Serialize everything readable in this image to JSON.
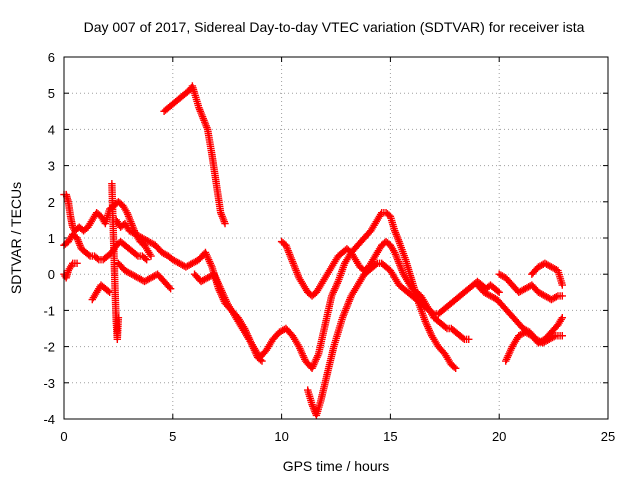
{
  "chart_data": {
    "type": "scatter",
    "title": "Day 007 of 2017, Sidereal Day-to-day VTEC variation (SDTVAR) for receiver ista",
    "xlabel": "GPS time / hours",
    "ylabel": "SDTVAR / TECUs",
    "xlim": [
      0,
      25
    ],
    "ylim": [
      -4,
      6
    ],
    "xticks": [
      0,
      5,
      10,
      15,
      20,
      25
    ],
    "yticks": [
      -4,
      -3,
      -2,
      -1,
      0,
      1,
      2,
      3,
      4,
      5,
      6
    ],
    "grid": true,
    "legend": "none",
    "marker": "plus",
    "color": "#ff0000",
    "series": [
      {
        "x": [
          0.0,
          0.1,
          0.2,
          0.3,
          0.4,
          0.5,
          0.7,
          0.9,
          1.1,
          1.3,
          1.5,
          1.7,
          1.9,
          2.1,
          2.3,
          2.5,
          2.7,
          2.9,
          3.1,
          3.3,
          3.5,
          3.7,
          4.0
        ],
        "y": [
          2.2,
          2.2,
          2.0,
          1.6,
          1.3,
          1.2,
          1.3,
          1.2,
          1.3,
          1.5,
          1.7,
          1.6,
          1.4,
          1.8,
          1.9,
          2.0,
          1.9,
          1.7,
          1.4,
          1.1,
          0.9,
          0.8,
          0.5
        ]
      },
      {
        "x": [
          0.0,
          0.2,
          0.4,
          0.6,
          0.8,
          1.0,
          1.2,
          1.4,
          1.6,
          1.8,
          2.0,
          2.2,
          2.4,
          2.6,
          2.8,
          3.0,
          3.2,
          3.4,
          3.6,
          3.8
        ],
        "y": [
          0.8,
          0.9,
          1.1,
          1.0,
          0.7,
          0.6,
          0.5,
          0.5,
          0.4,
          0.4,
          0.5,
          0.6,
          0.8,
          0.9,
          0.8,
          0.7,
          0.6,
          0.5,
          0.5,
          0.4
        ]
      },
      {
        "x": [
          0.0,
          0.1,
          0.2,
          0.3,
          0.4,
          0.6
        ],
        "y": [
          0.0,
          -0.1,
          0.1,
          0.2,
          0.3,
          0.3
        ]
      },
      {
        "x": [
          1.3,
          1.5,
          1.7,
          1.9,
          2.1
        ],
        "y": [
          -0.7,
          -0.5,
          -0.3,
          -0.4,
          -0.5
        ]
      },
      {
        "x": [
          2.2,
          2.25,
          2.3,
          2.35,
          2.4,
          2.45,
          2.5
        ],
        "y": [
          2.5,
          1.5,
          0.5,
          -0.5,
          -1.3,
          -1.8,
          -1.2
        ]
      },
      {
        "x": [
          2.5,
          2.8,
          3.1,
          3.4,
          3.7,
          4.0,
          4.3,
          4.6,
          4.9
        ],
        "y": [
          0.3,
          0.1,
          0.0,
          -0.1,
          -0.2,
          -0.1,
          0.0,
          -0.2,
          -0.4
        ]
      },
      {
        "x": [
          2.4,
          2.6,
          2.8,
          3.0,
          3.3,
          3.6,
          3.9,
          4.2,
          4.5,
          4.8,
          5.0,
          5.3,
          5.6,
          5.9,
          6.2,
          6.5,
          6.8,
          7.1,
          7.4,
          7.7,
          8.0,
          8.3,
          8.6,
          8.9,
          9.1
        ],
        "y": [
          1.5,
          1.3,
          1.4,
          1.2,
          1.1,
          1.0,
          0.9,
          0.8,
          0.6,
          0.5,
          0.4,
          0.3,
          0.2,
          0.3,
          0.4,
          0.6,
          0.2,
          -0.4,
          -0.8,
          -1.0,
          -1.2,
          -1.5,
          -1.9,
          -2.3,
          -2.4
        ]
      },
      {
        "x": [
          4.6,
          4.8,
          5.0,
          5.2,
          5.4,
          5.6,
          5.8,
          5.9,
          6.0,
          6.2,
          6.4,
          6.6,
          6.8,
          7.0,
          7.2,
          7.4
        ],
        "y": [
          4.5,
          4.6,
          4.7,
          4.8,
          4.9,
          5.0,
          5.1,
          5.2,
          5.0,
          4.6,
          4.3,
          4.0,
          3.3,
          2.5,
          1.7,
          1.4
        ]
      },
      {
        "x": [
          6.0,
          6.3,
          6.6,
          6.9,
          7.2,
          7.5,
          7.8,
          8.1,
          8.4,
          8.7,
          9.0,
          9.3,
          9.6,
          9.9,
          10.2,
          10.5,
          10.8,
          11.1,
          11.4,
          11.7,
          12.0,
          12.3,
          12.6,
          12.9,
          13.2,
          13.5,
          13.8,
          14.1,
          14.4,
          14.6,
          14.8,
          15.0,
          15.2,
          15.4,
          15.7,
          16.0,
          16.3,
          16.6,
          16.9,
          17.2,
          17.5,
          17.8,
          18.0
        ],
        "y": [
          0.0,
          -0.2,
          -0.1,
          0.0,
          -0.4,
          -0.8,
          -1.1,
          -1.4,
          -1.7,
          -2.0,
          -2.3,
          -2.1,
          -1.8,
          -1.6,
          -1.5,
          -1.7,
          -2.0,
          -2.4,
          -2.6,
          -2.2,
          -1.4,
          -0.6,
          -0.2,
          0.3,
          0.6,
          0.8,
          1.0,
          1.2,
          1.5,
          1.7,
          1.7,
          1.6,
          1.2,
          0.9,
          0.4,
          -0.2,
          -0.8,
          -1.3,
          -1.7,
          -2.0,
          -2.2,
          -2.5,
          -2.6
        ]
      },
      {
        "x": [
          10.0,
          10.2,
          10.4,
          10.6,
          10.8,
          11.0,
          11.2,
          11.4,
          11.6,
          11.8,
          12.0,
          12.2,
          12.4,
          12.6,
          12.8,
          13.0,
          13.2,
          13.4,
          13.6,
          13.8,
          14.0,
          14.2,
          14.4,
          14.6,
          14.8,
          15.0,
          15.2,
          15.4,
          15.6,
          15.8,
          16.0,
          16.2,
          16.4,
          16.6,
          16.8,
          17.0,
          17.2,
          17.4,
          17.6,
          17.8,
          18.0,
          18.2,
          18.4,
          18.6
        ],
        "y": [
          0.9,
          0.8,
          0.5,
          0.2,
          -0.1,
          -0.3,
          -0.5,
          -0.6,
          -0.5,
          -0.3,
          -0.1,
          0.1,
          0.3,
          0.5,
          0.6,
          0.7,
          0.6,
          0.4,
          0.2,
          0.1,
          0.2,
          0.4,
          0.6,
          0.8,
          0.9,
          0.8,
          0.6,
          0.3,
          0.0,
          -0.2,
          -0.4,
          -0.5,
          -0.6,
          -0.8,
          -1.0,
          -1.2,
          -1.3,
          -1.4,
          -1.5,
          -1.5,
          -1.6,
          -1.7,
          -1.8,
          -1.8
        ]
      },
      {
        "x": [
          11.2,
          11.4,
          11.6,
          11.8,
          12.0,
          12.2,
          12.4,
          12.6,
          12.8,
          13.0,
          13.2,
          13.4,
          13.6,
          13.8,
          14.0,
          14.2,
          14.4,
          14.6,
          14.8,
          15.0,
          15.2,
          15.4,
          15.6,
          15.8,
          16.0,
          16.2,
          16.4,
          16.6,
          16.8,
          17.0,
          17.2,
          17.4,
          17.6,
          17.8,
          18.0,
          18.2,
          18.4,
          18.6,
          18.8,
          19.0,
          19.2,
          19.4,
          19.6,
          19.8,
          20.0
        ],
        "y": [
          -3.2,
          -3.6,
          -3.9,
          -3.5,
          -3.0,
          -2.5,
          -2.0,
          -1.6,
          -1.2,
          -0.9,
          -0.6,
          -0.4,
          -0.2,
          0.0,
          0.1,
          0.2,
          0.3,
          0.3,
          0.2,
          0.1,
          -0.1,
          -0.3,
          -0.4,
          -0.5,
          -0.6,
          -0.7,
          -0.8,
          -0.9,
          -1.0,
          -1.1,
          -1.1,
          -1.0,
          -0.9,
          -0.8,
          -0.7,
          -0.6,
          -0.5,
          -0.4,
          -0.3,
          -0.2,
          -0.3,
          -0.4,
          -0.3,
          -0.4,
          -0.5
        ]
      },
      {
        "x": [
          19.0,
          19.3,
          19.6,
          19.9,
          20.2,
          20.5,
          20.8,
          21.1,
          21.4,
          21.7,
          22.0,
          22.3,
          22.6,
          22.9
        ],
        "y": [
          -0.3,
          -0.5,
          -0.6,
          -0.7,
          -0.9,
          -1.1,
          -1.3,
          -1.5,
          -1.6,
          -1.8,
          -1.9,
          -1.8,
          -1.7,
          -1.7
        ]
      },
      {
        "x": [
          20.0,
          20.3,
          20.6,
          20.9,
          21.2,
          21.5,
          21.8,
          22.1,
          22.4,
          22.7,
          22.9
        ],
        "y": [
          0.0,
          -0.1,
          -0.3,
          -0.5,
          -0.4,
          -0.3,
          -0.5,
          -0.6,
          -0.7,
          -0.6,
          -0.6
        ]
      },
      {
        "x": [
          20.3,
          20.6,
          20.9,
          21.2,
          21.5,
          21.8,
          22.1,
          22.4,
          22.7,
          22.9
        ],
        "y": [
          -2.4,
          -2.0,
          -1.7,
          -1.6,
          -1.7,
          -1.9,
          -1.8,
          -1.6,
          -1.4,
          -1.2
        ]
      },
      {
        "x": [
          21.5,
          21.8,
          22.1,
          22.4,
          22.7,
          22.9
        ],
        "y": [
          0.0,
          0.2,
          0.3,
          0.2,
          0.1,
          -0.3
        ]
      }
    ]
  }
}
